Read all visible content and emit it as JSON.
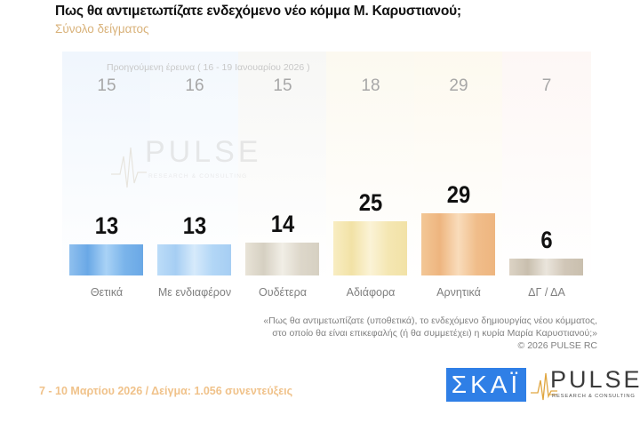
{
  "header": {
    "title": "Πως θα αντιμετωπίζατε ενδεχόμενο νέο κόμμα Μ. Καρυστιανού;",
    "subtitle": "Σύνολο δείγματος"
  },
  "previous_survey": {
    "caption": "Προηγούμενη έρευνα ( 16 - 19 Ιανουαρίου 2026 )",
    "values": [
      "15",
      "16",
      "15",
      "18",
      "29",
      "7"
    ]
  },
  "watermark": {
    "text": "PULSE",
    "subtext": "RESEARCH & CONSULTING"
  },
  "chart_data": {
    "type": "bar",
    "title": "Πως θα αντιμετωπίζατε ενδεχόμενο νέο κόμμα Μ. Καρυστιανού;",
    "subtitle": "Σύνολο δείγματος",
    "xlabel": "",
    "ylabel": "",
    "categories": [
      "Θετικά",
      "Με ενδιαφέρον",
      "Ουδέτερα",
      "Αδιάφορα",
      "Αρνητικά",
      "ΔΓ / ΔΑ"
    ],
    "series": [
      {
        "name": "7 - 10 Μαρτίου 2026",
        "values": [
          13,
          13,
          14,
          25,
          29,
          6
        ]
      },
      {
        "name": "Προηγούμενη έρευνα ( 16 - 19 Ιανουαρίου 2026 )",
        "values": [
          15,
          16,
          15,
          18,
          29,
          7
        ]
      }
    ],
    "ylim": [
      0,
      100
    ],
    "grid": false,
    "colors": [
      "#7fb6ea",
      "#a9d0f5",
      "#ddd8cc",
      "#f6e9b5",
      "#f2c08f",
      "#d6cbbb"
    ]
  },
  "quote": {
    "line1": "«Πως θα αντιμετωπίζατε (υποθετικά), το ενδεχόμενο δημιουργίας νέου κόμματος,",
    "line2": "στο οποίο θα είναι επικεφαλής (ή θα συμμετέχει) η κυρία Μαρία Καρυστιανού;»",
    "copyright": "©  2026  PULSE RC"
  },
  "footer": {
    "text": "7 - 10  Μαρτίου 2026  /  Δείγμα:  1.056 συνεντεύξεις"
  },
  "logos": {
    "skai": "ΣΚΑΪ",
    "pulse": "PULSE",
    "pulse_sub": "RESEARCH & CONSULTING"
  }
}
